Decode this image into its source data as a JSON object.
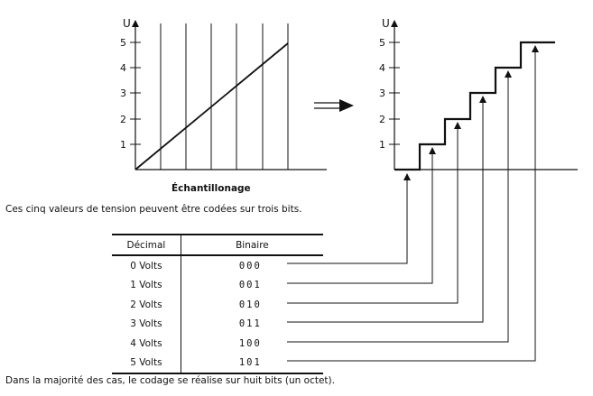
{
  "left_chart": {
    "axis_label": "U",
    "ticks": [
      "1",
      "2",
      "3",
      "4",
      "5"
    ],
    "caption": "Échantillonage"
  },
  "right_chart": {
    "axis_label": "U",
    "ticks": [
      "1",
      "2",
      "3",
      "4",
      "5"
    ]
  },
  "text": {
    "intro": "Ces cinq valeurs de tension peuvent être codées sur trois bits.",
    "footer": "Dans la majorité des cas, le codage se réalise sur huit bits (un octet)."
  },
  "table": {
    "headers": [
      "Décimal",
      "Binaire"
    ],
    "rows": [
      {
        "decimal": "0 Volts",
        "binary": "000"
      },
      {
        "decimal": "1 Volts",
        "binary": "001"
      },
      {
        "decimal": "2 Volts",
        "binary": "010"
      },
      {
        "decimal": "3 Volts",
        "binary": "011"
      },
      {
        "decimal": "4 Volts",
        "binary": "100"
      },
      {
        "decimal": "5 Volts",
        "binary": "101"
      }
    ]
  },
  "colors": {
    "ink": "#111111",
    "background": "#ffffff"
  }
}
